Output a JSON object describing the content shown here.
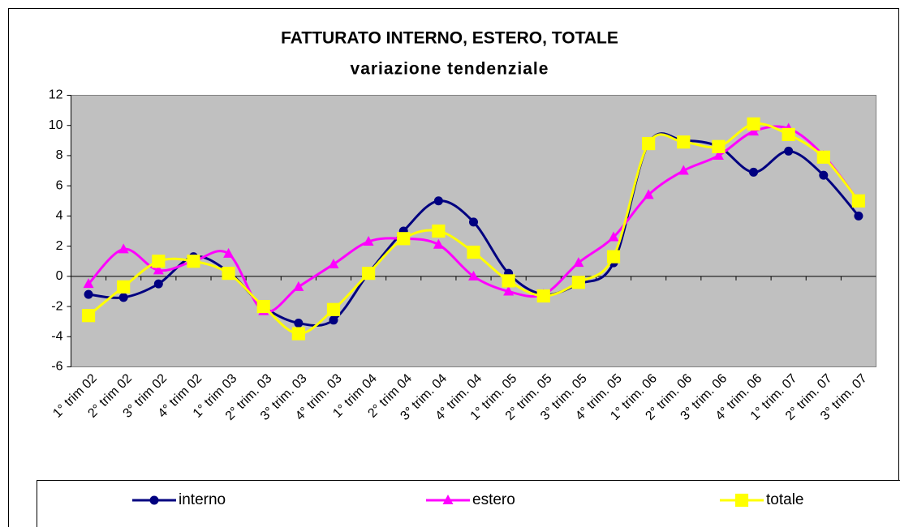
{
  "chart_data": {
    "type": "line",
    "title": "FATTURATO INTERNO, ESTERO, TOTALE",
    "subtitle": "variazione tendenziale",
    "categories": [
      "1° trim 02",
      "2° trim 02",
      "3° trim 02",
      "4° trim 02",
      "1° trim 03",
      "2° trim. 03",
      "3° trim. 03",
      "4° trim. 03",
      "1° trim 04",
      "2° trim 04",
      "3° trim. 04",
      "4° trim. 04",
      "1° trim. 05",
      "2° trim. 05",
      "3° trim. 05",
      "4° trim. 05",
      "1° trim. 06",
      "2° trim. 06",
      "3° trim. 06",
      "4° trim. 06",
      "1° trim. 07",
      "2° trim. 07",
      "3° trim. 07"
    ],
    "series": [
      {
        "name": "interno",
        "color": "#000080",
        "marker": "circle",
        "values": [
          -1.2,
          -1.4,
          -0.5,
          1.3,
          0.3,
          -2.0,
          -3.1,
          -2.9,
          0.2,
          3.0,
          5.0,
          3.6,
          0.2,
          -1.2,
          -0.5,
          0.9,
          8.8,
          9.0,
          8.6,
          6.9,
          8.3,
          6.7,
          4.0
        ]
      },
      {
        "name": "estero",
        "color": "#ff00ff",
        "marker": "triangle",
        "values": [
          -0.5,
          1.8,
          0.4,
          1.0,
          1.5,
          -2.3,
          -0.7,
          0.8,
          2.3,
          2.5,
          2.1,
          0.0,
          -1.0,
          -1.2,
          0.9,
          2.6,
          5.4,
          7.0,
          8.0,
          9.6,
          9.8,
          8.0,
          5.0
        ]
      },
      {
        "name": "totale",
        "color": "#ffff00",
        "marker": "square",
        "values": [
          -2.6,
          -0.7,
          1.0,
          1.0,
          0.2,
          -2.0,
          -3.8,
          -2.2,
          0.2,
          2.5,
          3.0,
          1.6,
          -0.3,
          -1.3,
          -0.4,
          1.3,
          8.8,
          8.9,
          8.6,
          10.1,
          9.4,
          7.9,
          5.0
        ]
      }
    ],
    "ylim": [
      -6,
      12
    ],
    "yticks": [
      -6,
      -4,
      -2,
      0,
      2,
      4,
      6,
      8,
      10,
      12
    ],
    "legend": "bottom"
  }
}
